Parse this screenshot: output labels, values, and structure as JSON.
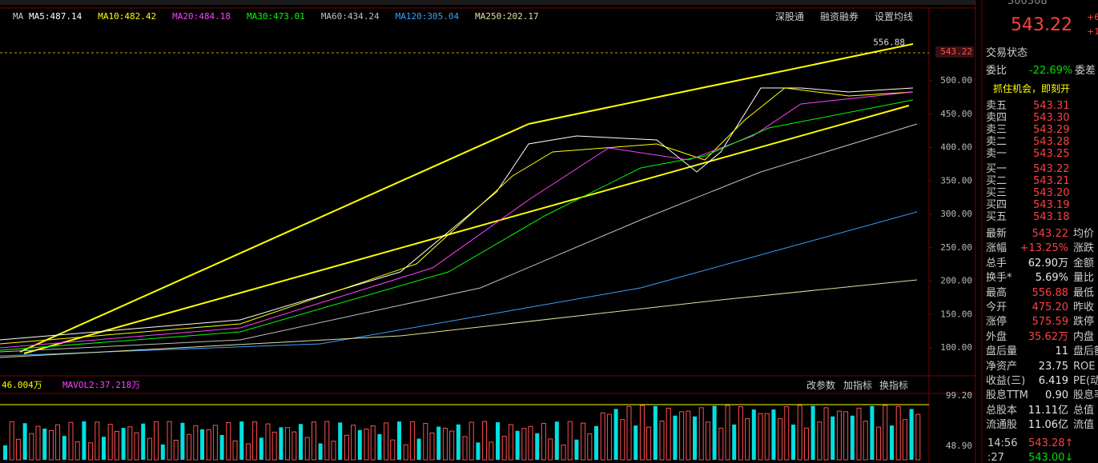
{
  "ma_legend": {
    "prefix": "MA",
    "items": [
      {
        "label": "MA5:487.14",
        "color": "#ffffff"
      },
      {
        "label": "MA10:482.42",
        "color": "#ffff00"
      },
      {
        "label": "MA20:484.18",
        "color": "#ff40ff"
      },
      {
        "label": "MA30:473.01",
        "color": "#00ff00"
      },
      {
        "label": "MA60:434.24",
        "color": "#c0c0c0"
      },
      {
        "label": "MA120:305.04",
        "color": "#3aa0ff"
      },
      {
        "label": "MA250:202.17",
        "color": "#e0e0a0"
      }
    ]
  },
  "toolbar": [
    "深股通",
    "融资融券",
    "设置均线"
  ],
  "price_axis": {
    "ticks": [
      {
        "value": 500,
        "label": "500.00"
      },
      {
        "value": 450,
        "label": "450.00"
      },
      {
        "value": 400,
        "label": "400.00"
      },
      {
        "value": 350,
        "label": "350.00"
      },
      {
        "value": 300,
        "label": "300.00"
      },
      {
        "value": 250,
        "label": "250.00"
      },
      {
        "value": 200,
        "label": "200.00"
      },
      {
        "value": 150,
        "label": "150.00"
      },
      {
        "value": 100,
        "label": "100.00"
      }
    ],
    "high": {
      "value": 556.88,
      "label": "556.88"
    },
    "last": {
      "value": 543.22,
      "label": "543.22"
    }
  },
  "volume": {
    "legend": [
      "46.004万",
      "MAVOL2:37.218万"
    ],
    "buttons": [
      "改参数",
      "加指标",
      "换指标"
    ],
    "axis": [
      "99.20",
      "48.90"
    ]
  },
  "quote": {
    "code": "300308",
    "price": "543.22",
    "change": [
      "+6",
      "+1"
    ],
    "status": "交易状态",
    "ratio": [
      "委比",
      "-22.69%",
      "委差"
    ],
    "ad": "抓住机会，即刻开"
  },
  "asks": [
    [
      "卖五",
      "543.31"
    ],
    [
      "卖四",
      "543.30"
    ],
    [
      "卖三",
      "543.29"
    ],
    [
      "卖二",
      "543.28"
    ],
    [
      "卖一",
      "543.25"
    ]
  ],
  "bids": [
    [
      "买一",
      "543.22"
    ],
    [
      "买二",
      "543.21"
    ],
    [
      "买三",
      "543.20"
    ],
    [
      "买四",
      "543.19"
    ],
    [
      "买五",
      "543.18"
    ]
  ],
  "stats": [
    {
      "cells": [
        "最新",
        "543.22",
        "均价"
      ],
      "color": "#ff4040"
    },
    {
      "cells": [
        "涨幅",
        "+13.25%",
        "涨跌"
      ],
      "color": "#ff4040"
    },
    {
      "cells": [
        "总手",
        "62.90万",
        "金额"
      ],
      "color": "#e8e8e8"
    },
    {
      "cells": [
        "换手*",
        "5.69%",
        "量比"
      ],
      "color": "#e8e8e8"
    },
    {
      "cells": [
        "最高",
        "556.88",
        "最低"
      ],
      "color": "#ff4040"
    },
    {
      "cells": [
        "今开",
        "475.20",
        "昨收"
      ],
      "color": "#ff4040"
    },
    {
      "cells": [
        "涨停",
        "575.59",
        "跌停"
      ],
      "color": "#ff4040"
    },
    {
      "cells": [
        "外盘",
        "35.62万",
        "内盘"
      ],
      "color": "#ff4040"
    },
    {
      "cells": [
        "盘后量",
        "11",
        "盘后额"
      ],
      "color": "#e8e8e8"
    },
    {
      "cells": [
        "净资产",
        "23.75",
        "ROE"
      ],
      "color": "#e8e8e8"
    },
    {
      "cells": [
        "收益(三)",
        "6.419",
        "PE(动)"
      ],
      "color": "#e8e8e8"
    },
    {
      "cells": [
        "股息TTM",
        "0.90",
        "股息率"
      ],
      "color": "#e8e8e8"
    },
    {
      "cells": [
        "总股本",
        "11.11亿",
        "总值"
      ],
      "color": "#e8e8e8"
    },
    {
      "cells": [
        "流通股",
        "11.06亿",
        "流值"
      ],
      "color": "#e8e8e8"
    }
  ],
  "trades": [
    {
      "cells": [
        "14:56",
        "543.28↑"
      ],
      "color": "#ff4040"
    },
    {
      "cells": [
        ":27",
        "543.00↓"
      ],
      "color": "#00e000"
    }
  ]
}
